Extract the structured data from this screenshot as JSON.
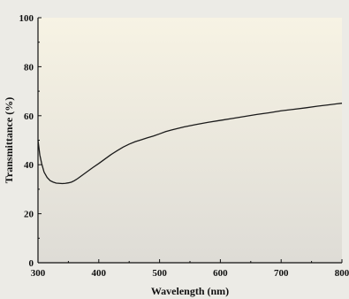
{
  "chart_data": {
    "type": "line",
    "title": "",
    "xlabel": "Wavelength (nm)",
    "ylabel": "Transmittance (%)",
    "xlim": [
      300,
      800
    ],
    "ylim": [
      0,
      100
    ],
    "x_ticks": [
      300,
      400,
      500,
      600,
      700,
      800
    ],
    "y_ticks": [
      0,
      20,
      40,
      60,
      80,
      100
    ],
    "grid": false,
    "colors": {
      "plot_bg_top": "#f7f3e4",
      "plot_bg_bottom": "#dedcd6",
      "line": "#1a1a1a",
      "page_bg": "#ecebe6"
    },
    "series": [
      {
        "x": [
          300,
          303,
          306,
          310,
          315,
          320,
          325,
          330,
          335,
          340,
          345,
          350,
          355,
          360,
          365,
          370,
          380,
          390,
          400,
          410,
          420,
          430,
          440,
          450,
          460,
          470,
          480,
          490,
          500,
          510,
          520,
          540,
          560,
          580,
          600,
          620,
          640,
          660,
          680,
          700,
          720,
          740,
          760,
          780,
          800
        ],
        "y": [
          50,
          44,
          40.5,
          37,
          34.8,
          33.5,
          32.9,
          32.5,
          32.4,
          32.3,
          32.4,
          32.6,
          32.9,
          33.5,
          34.3,
          35.2,
          37,
          38.8,
          40.5,
          42.3,
          44.1,
          45.7,
          47.2,
          48.4,
          49.4,
          50.2,
          51,
          51.7,
          52.6,
          53.5,
          54.2,
          55.4,
          56.4,
          57.3,
          58.1,
          58.9,
          59.7,
          60.5,
          61.2,
          62,
          62.6,
          63.2,
          63.9,
          64.5,
          65.1
        ]
      }
    ]
  }
}
